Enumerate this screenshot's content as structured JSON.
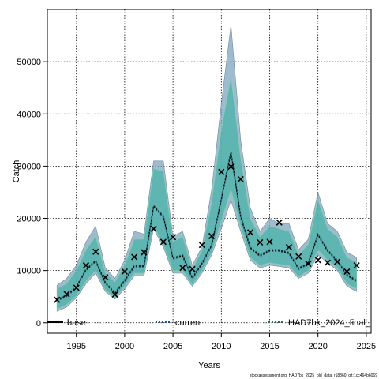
{
  "chart_data": {
    "type": "line",
    "xlabel": "Years",
    "ylabel": "Catch",
    "xlim": [
      1992.0,
      2025.5
    ],
    "ylim": [
      -2000,
      60000
    ],
    "grid": true,
    "xticks": [
      1995,
      2000,
      2005,
      2010,
      2015,
      2020,
      2025
    ],
    "yticks": [
      0,
      10000,
      20000,
      30000,
      40000,
      50000
    ],
    "legend_position": "bottom",
    "colors": {
      "band_outer": "#7fa6bd",
      "band_inner": "#48b3a8",
      "band_alt": "#7dd0a6",
      "line": "#000000",
      "line_current": "#1f4e8c",
      "line_final": "#1f6e5a"
    },
    "legend": [
      {
        "label": "base",
        "style": "solid",
        "color": "#000000"
      },
      {
        "label": "current",
        "style": "dotted",
        "color": "#1f4e8c"
      },
      {
        "label": "HAD7bk_2024_final_",
        "style": "dotted",
        "color": "#1f6e5a"
      }
    ],
    "years": [
      1993,
      1994,
      1995,
      1996,
      1997,
      1998,
      1999,
      2000,
      2001,
      2002,
      2003,
      2004,
      2005,
      2006,
      2007,
      2008,
      2009,
      2010,
      2011,
      2012,
      2013,
      2014,
      2015,
      2016,
      2017,
      2018,
      2019,
      2020,
      2021,
      2022,
      2023,
      2024
    ],
    "observed": [
      4400,
      5500,
      6700,
      11000,
      13600,
      8700,
      5400,
      9800,
      12600,
      13500,
      18000,
      15500,
      16400,
      10500,
      10300,
      14900,
      16600,
      28900,
      29900,
      27500,
      17300,
      15400,
      15500,
      19200,
      14500,
      12700,
      11300,
      12000,
      11500,
      11700,
      9800,
      11000
    ],
    "fitted": [
      4500,
      5300,
      7000,
      10300,
      12000,
      7800,
      5800,
      8200,
      11000,
      11000,
      22500,
      20500,
      12500,
      13000,
      8700,
      11500,
      15000,
      23800,
      32800,
      20500,
      14500,
      13000,
      14000,
      14000,
      13500,
      10500,
      11500,
      17000,
      14000,
      12000,
      9300,
      8200
    ],
    "band_upper": [
      7200,
      8500,
      11000,
      15500,
      18500,
      10500,
      8500,
      12000,
      17500,
      17000,
      31000,
      31000,
      16500,
      17500,
      11000,
      14500,
      25500,
      42000,
      57000,
      35000,
      22000,
      17500,
      20000,
      19000,
      19000,
      14000,
      16000,
      25000,
      19000,
      17500,
      13500,
      12500
    ],
    "band_lower": [
      2200,
      3000,
      4800,
      7500,
      9500,
      6000,
      4500,
      6500,
      9000,
      9000,
      18000,
      14500,
      9500,
      9500,
      7000,
      9500,
      13000,
      18000,
      23500,
      17500,
      12000,
      10500,
      11000,
      10800,
      10500,
      8500,
      9500,
      13000,
      11500,
      10000,
      7000,
      6000
    ],
    "band_inner_upper": [
      6500,
      7500,
      10000,
      14000,
      16500,
      9500,
      7800,
      11000,
      16000,
      16000,
      29500,
      29000,
      15500,
      16500,
      10200,
      13800,
      23000,
      37000,
      47000,
      31500,
      20000,
      16500,
      18500,
      18000,
      17500,
      13000,
      15000,
      23500,
      18000,
      16500,
      12500,
      11500
    ],
    "band_inner_lower": [
      2600,
      3500,
      5200,
      8000,
      10000,
      6300,
      4800,
      7000,
      9500,
      9500,
      18500,
      15000,
      10000,
      10000,
      7300,
      10000,
      13500,
      19500,
      25500,
      18500,
      12500,
      11000,
      11500,
      11200,
      11000,
      8800,
      10000,
      14000,
      12000,
      10500,
      7500,
      6500
    ]
  },
  "footnote": "stockassessment.org, HAD7bk_2025_old_data, r18860, git:1cc464b6069"
}
